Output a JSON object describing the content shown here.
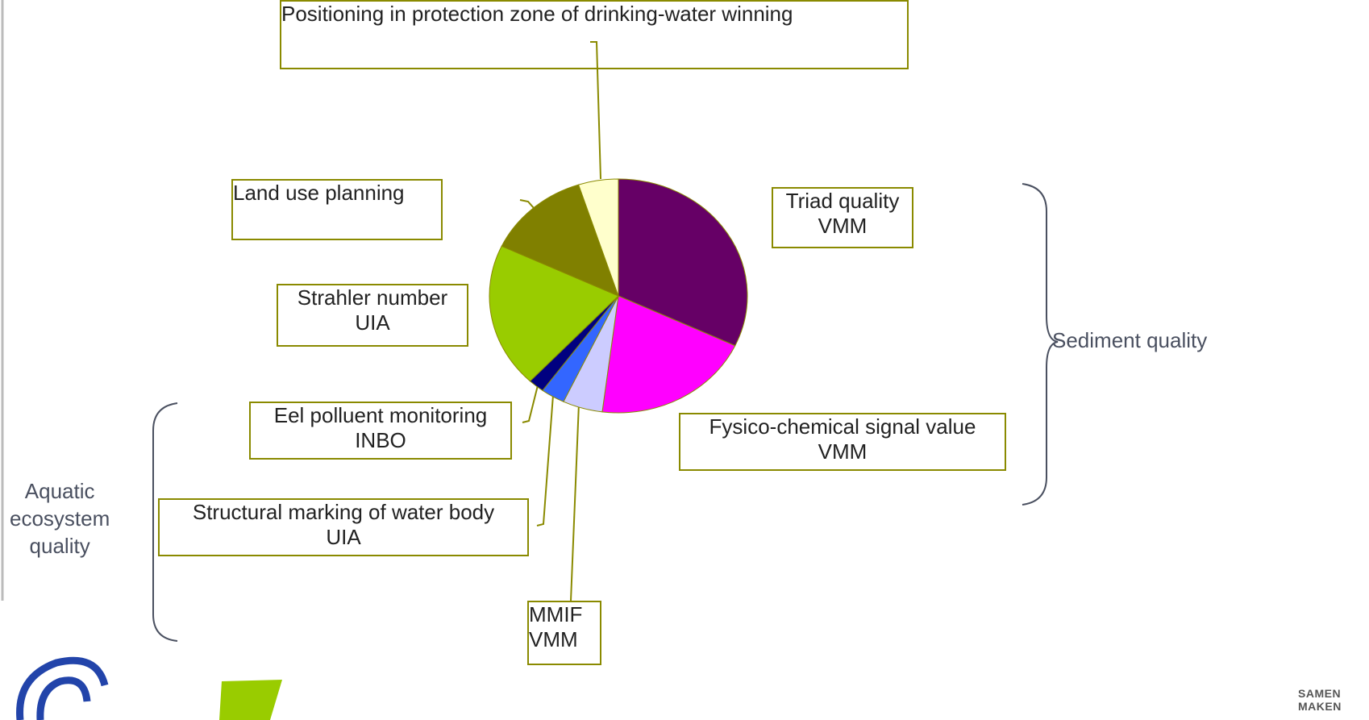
{
  "chart_data": {
    "type": "pie",
    "categories": [
      "Triad quality\nVMM",
      "Fysico-chemical signal value\nVMM",
      "MMIF\nVMM",
      "Structural marking of water body\nUIA",
      "Eel polluent monitoring\nINBO",
      "Strahler number\nUIA",
      "Land use planning",
      "Positioning in protection zone of drinking-water winning"
    ],
    "values": [
      32,
      20,
      5,
      3,
      2,
      20,
      13,
      5
    ],
    "colors": [
      "#660066",
      "#ff00ff",
      "#ccccff",
      "#3366ff",
      "#000080",
      "#99cc00",
      "#808000",
      "#ffffcc"
    ],
    "annotations": [
      "Sediment quality",
      "Aquatic\necosystem\nquality"
    ],
    "logo_text": "SAMEN MAKEN"
  }
}
